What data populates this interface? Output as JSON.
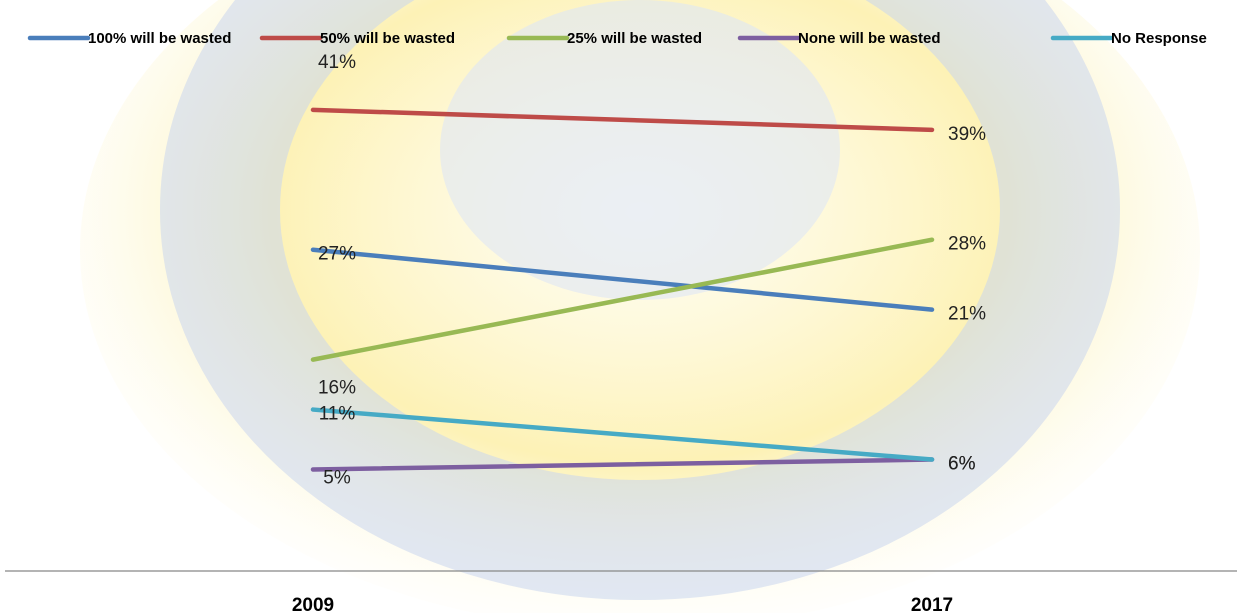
{
  "chart_data": {
    "type": "line",
    "title": "",
    "xlabel": "",
    "ylabel": "",
    "categories": [
      "2009",
      "2017"
    ],
    "series": [
      {
        "name": "100% will be wasted",
        "color": "#4a7ebb",
        "values": [
          27,
          21
        ],
        "labels": [
          "27%",
          "21%"
        ]
      },
      {
        "name": "50% will be wasted",
        "color": "#be4b48",
        "values": [
          41,
          39
        ],
        "labels": [
          "41%",
          "39%"
        ]
      },
      {
        "name": "25% will be wasted",
        "color": "#98b954",
        "values": [
          16,
          28
        ],
        "labels": [
          "16%",
          "28%"
        ]
      },
      {
        "name": "None will be wasted",
        "color": "#7d5fa0",
        "values": [
          5,
          6
        ],
        "labels": [
          "5%",
          "6%"
        ]
      },
      {
        "name": "No Response",
        "color": "#46aac5",
        "values": [
          11,
          6
        ],
        "labels": [
          "11%",
          "6%"
        ]
      }
    ],
    "legend_position": "top",
    "grid": false
  },
  "background": {
    "ring_color": "#c9d6ee",
    "glow_color": "#fbe77a"
  }
}
